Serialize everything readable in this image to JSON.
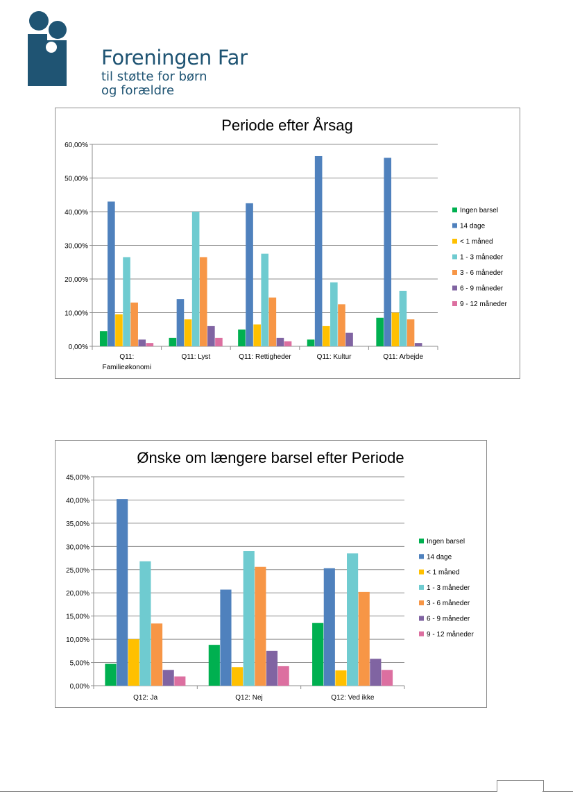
{
  "logo": {
    "title": "Foreningen Far",
    "sub1": "til støtte for børn",
    "sub2": "og forældre",
    "color": "#1f5473"
  },
  "colors": {
    "Ingen barsel": "#00b050",
    "14 dage": "#4f81bd",
    "< 1 måned": "#ffc000",
    "1 - 3 måneder": "#6fcbd0",
    "3 - 6 måneder": "#f79646",
    "6 - 9 måneder": "#8064a2",
    "9 - 12 måneder": "#dc6fa0"
  },
  "chart_data": [
    {
      "type": "bar",
      "title": "Periode efter Årsag",
      "categories": [
        "Q11: Familieøkonomi",
        "Q11: Lyst",
        "Q11: Rettigheder",
        "Q11: Kultur",
        "Q11: Arbejde"
      ],
      "ylim": [
        0,
        60
      ],
      "ytick_step": 10,
      "ytick_labels": [
        "0,00%",
        "10,00%",
        "20,00%",
        "30,00%",
        "40,00%",
        "50,00%",
        "60,00%"
      ],
      "grid": true,
      "legend_position": "right",
      "series": [
        {
          "name": "Ingen barsel",
          "values": [
            4.5,
            2.5,
            5.0,
            2.0,
            8.5
          ]
        },
        {
          "name": "14 dage",
          "values": [
            43.0,
            14.0,
            42.5,
            56.5,
            56.0
          ]
        },
        {
          "name": "< 1 måned",
          "values": [
            9.5,
            8.0,
            6.5,
            6.0,
            10.0
          ]
        },
        {
          "name": "1 - 3 måneder",
          "values": [
            26.5,
            40.0,
            27.5,
            19.0,
            16.5
          ]
        },
        {
          "name": "3 - 6 måneder",
          "values": [
            13.0,
            26.5,
            14.5,
            12.5,
            8.0
          ]
        },
        {
          "name": "6 - 9 måneder",
          "values": [
            2.0,
            6.0,
            2.5,
            4.0,
            1.0
          ]
        },
        {
          "name": "9 - 12 måneder",
          "values": [
            1.0,
            2.5,
            1.5,
            0,
            0
          ]
        }
      ]
    },
    {
      "type": "bar",
      "title": "Ønske om længere barsel efter Periode",
      "categories": [
        "Q12: Ja",
        "Q12: Nej",
        "Q12: Ved ikke"
      ],
      "ylim": [
        0,
        45
      ],
      "ytick_step": 5,
      "ytick_labels": [
        "0,00%",
        "5,00%",
        "10,00%",
        "15,00%",
        "20,00%",
        "25,00%",
        "30,00%",
        "35,00%",
        "40,00%",
        "45,00%"
      ],
      "grid": true,
      "legend_position": "right",
      "series": [
        {
          "name": "Ingen barsel",
          "values": [
            4.7,
            8.8,
            13.5
          ]
        },
        {
          "name": "14 dage",
          "values": [
            40.2,
            20.7,
            25.3
          ]
        },
        {
          "name": "< 1 måned",
          "values": [
            10.0,
            4.0,
            3.3
          ]
        },
        {
          "name": "1 - 3 måneder",
          "values": [
            26.8,
            29.0,
            28.5
          ]
        },
        {
          "name": "3 - 6 måneder",
          "values": [
            13.4,
            25.6,
            20.2
          ]
        },
        {
          "name": "6 - 9 måneder",
          "values": [
            3.4,
            7.5,
            5.8
          ]
        },
        {
          "name": "9 - 12 måneder",
          "values": [
            2.0,
            4.2,
            3.4
          ]
        }
      ]
    }
  ]
}
